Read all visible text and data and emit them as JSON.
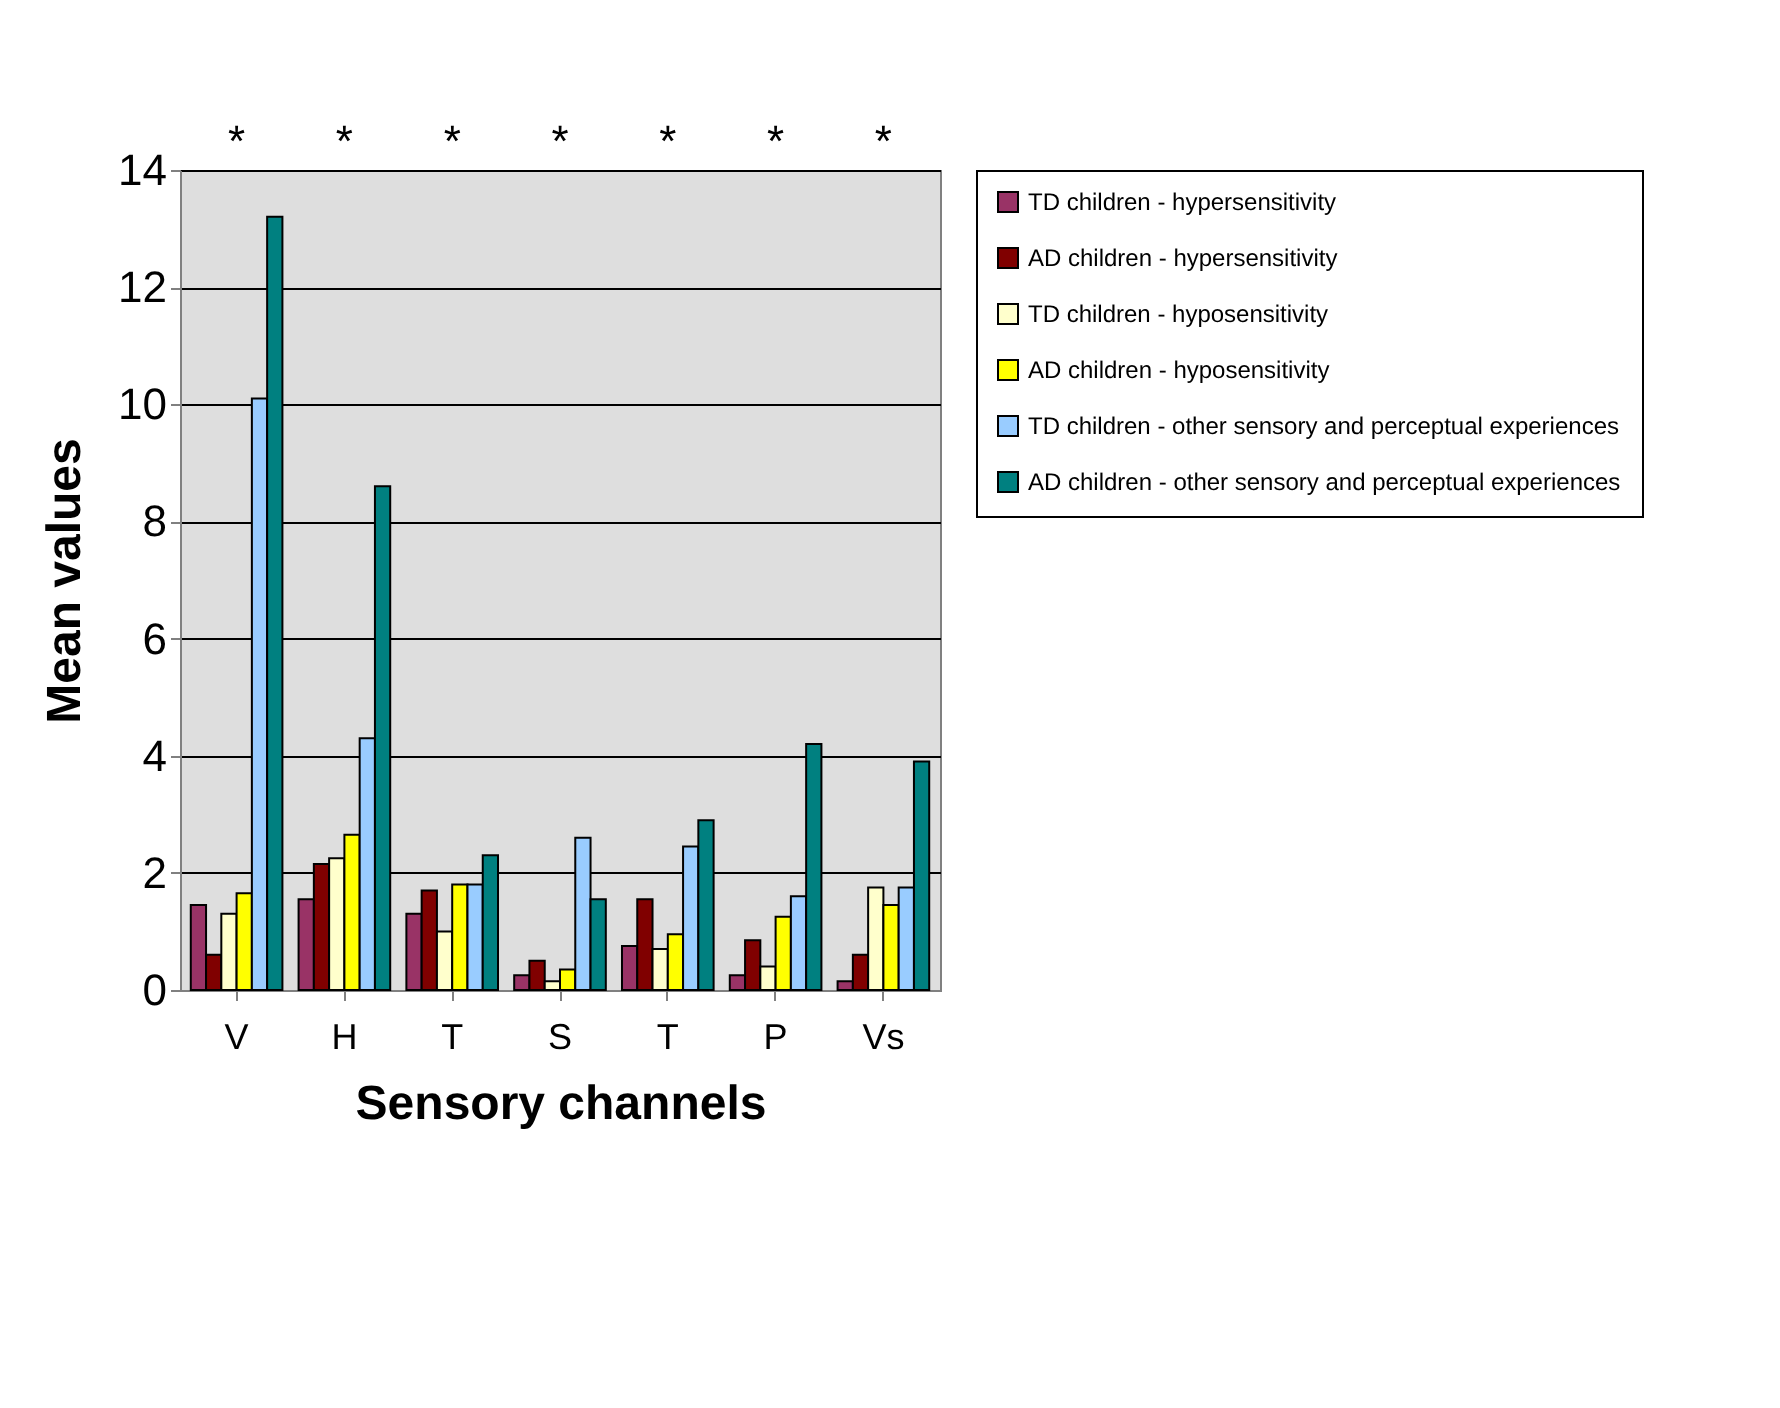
{
  "chart_data": {
    "type": "bar",
    "xlabel": "Sensory channels",
    "ylabel": "Mean values",
    "categories": [
      "V",
      "H",
      "T",
      "S",
      "T",
      "P",
      "Vs"
    ],
    "series": [
      {
        "name": "TD children - hypersensitivity",
        "color": "#993366",
        "values": [
          1.45,
          1.55,
          1.3,
          0.25,
          0.75,
          0.25,
          0.15
        ]
      },
      {
        "name": "AD children - hypersensitivity",
        "color": "#800000",
        "values": [
          0.6,
          2.15,
          1.7,
          0.5,
          1.55,
          0.85,
          0.6
        ]
      },
      {
        "name": "TD children - hyposensitivity",
        "color": "#ffffcc",
        "values": [
          1.3,
          2.25,
          1.0,
          0.15,
          0.7,
          0.4,
          1.75
        ]
      },
      {
        "name": "AD children - hyposensitivity",
        "color": "#ffff00",
        "values": [
          1.65,
          2.65,
          1.8,
          0.35,
          0.95,
          1.25,
          1.45
        ]
      },
      {
        "name": "TD children - other sensory and perceptual experiences",
        "color": "#99ccff",
        "values": [
          10.1,
          4.3,
          1.8,
          2.6,
          2.45,
          1.6,
          1.75
        ]
      },
      {
        "name": "AD children - other sensory and perceptual experiences",
        "color": "#008080",
        "values": [
          13.2,
          8.6,
          2.3,
          1.55,
          2.9,
          4.2,
          3.9
        ]
      }
    ],
    "annotations": [
      "*",
      "*",
      "*",
      "*",
      "*",
      "*",
      "*"
    ],
    "ylim": [
      0,
      14
    ],
    "yticks": [
      0,
      2,
      4,
      6,
      8,
      10,
      12,
      14
    ],
    "grid": "y",
    "legend": "right"
  }
}
